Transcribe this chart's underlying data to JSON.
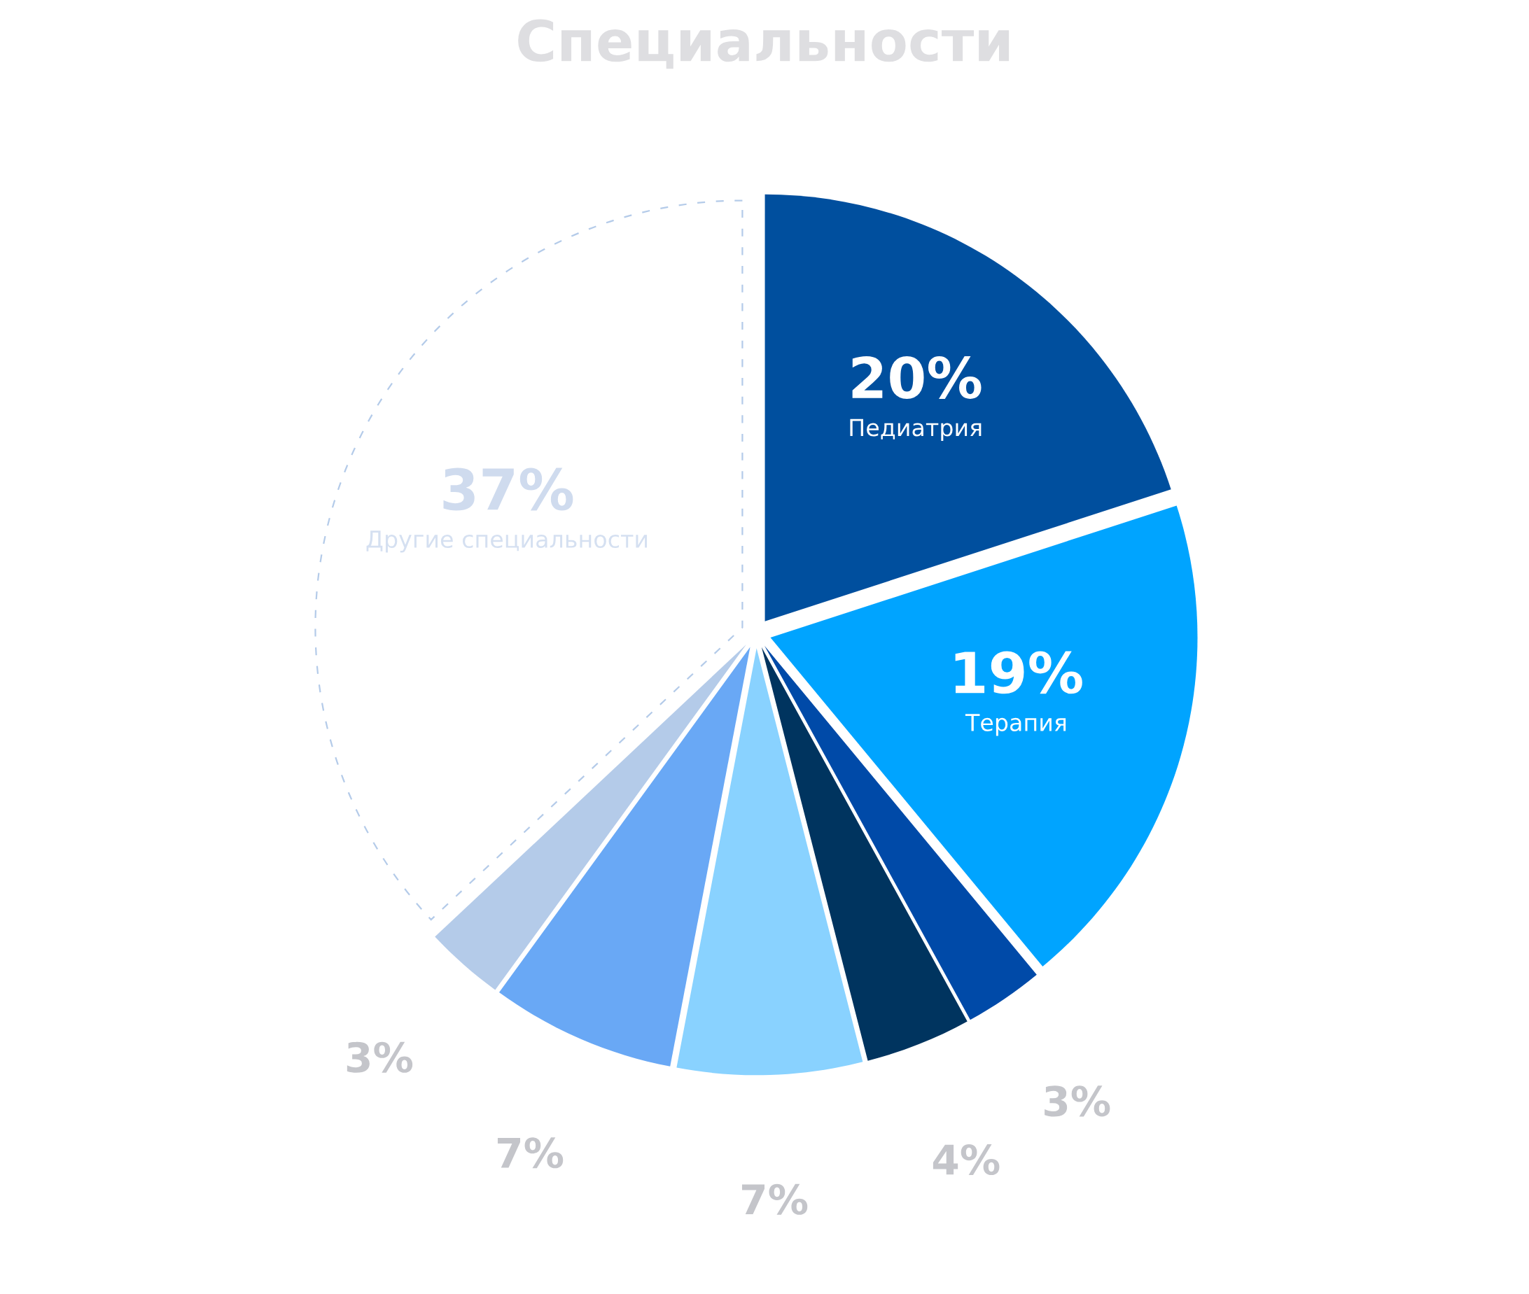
{
  "chart_data": {
    "type": "pie",
    "title": "Специальности",
    "categories": [
      "Педиатрия",
      "Терапия",
      null,
      null,
      null,
      null,
      null,
      "Другие специальности"
    ],
    "values": [
      20,
      19,
      3,
      4,
      7,
      7,
      3,
      37
    ],
    "colors": [
      "#004f9e",
      "#00a4ff",
      "#004aa8",
      "#00345f",
      "#89d2ff",
      "#69a8f5",
      "#b4cbe9",
      "#ffffff"
    ],
    "value_labels": [
      "20%",
      "19%",
      "3%",
      "4%",
      "7%",
      "7%",
      "3%",
      "37%"
    ],
    "line_style": "dashed"
  }
}
